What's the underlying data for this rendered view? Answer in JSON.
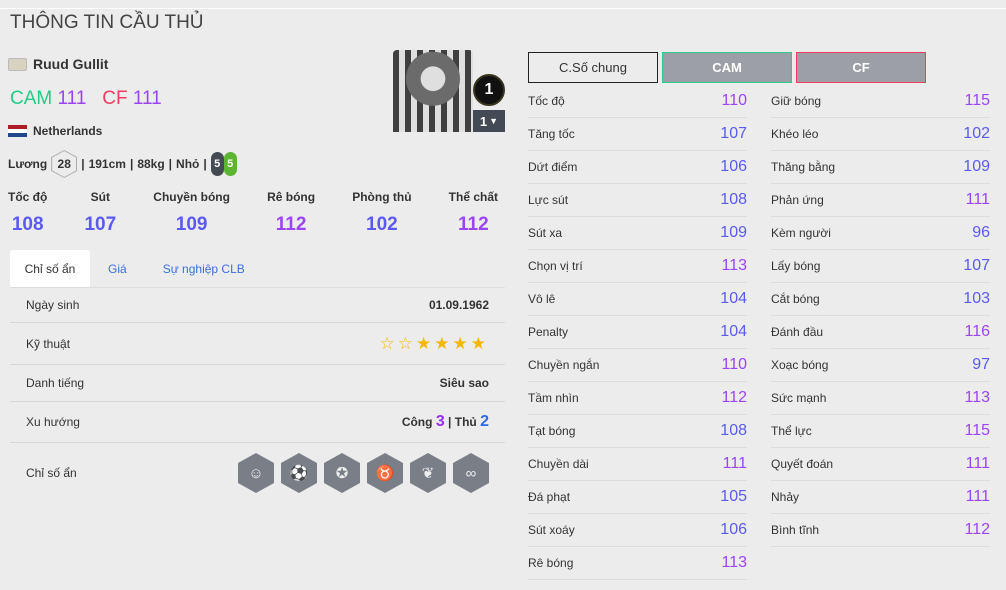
{
  "page_title": "THÔNG TIN CẦU THỦ",
  "player": {
    "name": "Ruud Gullit",
    "positions": [
      {
        "pos": "CAM",
        "ovr": "111",
        "color": "#22cc88"
      },
      {
        "pos": "CF",
        "ovr": "111",
        "color": "#ee3d5f"
      }
    ],
    "nation": "Netherlands",
    "overall_badge": "1",
    "level": "1",
    "salary_label": "Lương",
    "salary": "28",
    "height": "191cm",
    "weight": "88kg",
    "body": "Nhỏ",
    "left_foot": "5",
    "right_foot": "5"
  },
  "main_stats": [
    {
      "label": "Tốc độ",
      "value": "108"
    },
    {
      "label": "Sút",
      "value": "107"
    },
    {
      "label": "Chuyền bóng",
      "value": "109"
    },
    {
      "label": "Rê bóng",
      "value": "112"
    },
    {
      "label": "Phòng thủ",
      "value": "102"
    },
    {
      "label": "Thể chất",
      "value": "112"
    }
  ],
  "tabs": [
    "Chỉ số ẩn",
    "Giá",
    "Sự nghiệp CLB"
  ],
  "details": {
    "birth_label": "Ngày sinh",
    "birth": "01.09.1962",
    "skill_label": "Kỹ thuật",
    "skill_stars": 4,
    "skill_max": 6,
    "fame_label": "Danh tiếng",
    "fame": "Siêu sao",
    "trend_label": "Xu hướng",
    "attack_label": "Công",
    "attack": "3",
    "defense_label": "Thủ",
    "defense": "2",
    "hidden_label": "Chỉ số ẩn",
    "traits": [
      "helmet-head-icon",
      "speed-dribble-icon",
      "medal-ball-icon",
      "bull-icon",
      "lungs-icon",
      "tactics-icon"
    ]
  },
  "buttons": [
    "C.Số chung",
    "CAM",
    "CF"
  ],
  "stats_left": [
    [
      "Tốc độ",
      "110"
    ],
    [
      "Tăng tốc",
      "107"
    ],
    [
      "Dứt điểm",
      "106"
    ],
    [
      "Lực sút",
      "108"
    ],
    [
      "Sút xa",
      "109"
    ],
    [
      "Chọn vị trí",
      "113"
    ],
    [
      "Vô lê",
      "104"
    ],
    [
      "Penalty",
      "104"
    ],
    [
      "Chuyền ngắn",
      "110"
    ],
    [
      "Tầm nhìn",
      "112"
    ],
    [
      "Tạt bóng",
      "108"
    ],
    [
      "Chuyền dài",
      "111"
    ],
    [
      "Đá phạt",
      "105"
    ],
    [
      "Sút xoáy",
      "106"
    ],
    [
      "Rê bóng",
      "113"
    ]
  ],
  "stats_right": [
    [
      "Giữ bóng",
      "115"
    ],
    [
      "Khéo léo",
      "102"
    ],
    [
      "Thăng bằng",
      "109"
    ],
    [
      "Phản ứng",
      "111"
    ],
    [
      "Kèm người",
      "96"
    ],
    [
      "Lấy bóng",
      "107"
    ],
    [
      "Cắt bóng",
      "103"
    ],
    [
      "Đánh đầu",
      "116"
    ],
    [
      "Xoạc bóng",
      "97"
    ],
    [
      "Sức mạnh",
      "113"
    ],
    [
      "Thể lực",
      "115"
    ],
    [
      "Quyết đoán",
      "111"
    ],
    [
      "Nhảy",
      "111"
    ],
    [
      "Bình tĩnh",
      "112"
    ]
  ],
  "colors": {
    "high": "#9b44f5",
    "mid": "#5a5af0",
    "attack": "#9b2cf5",
    "defense": "#2a6ae8"
  }
}
